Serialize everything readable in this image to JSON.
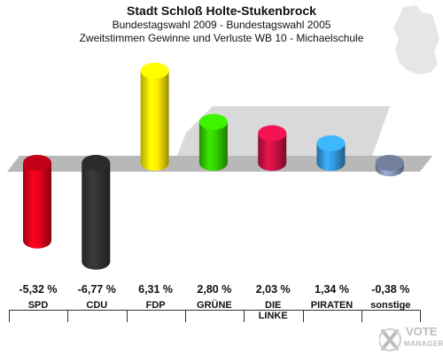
{
  "header": {
    "title": "Stadt Schloß Holte-Stukenbrock",
    "subtitle": "Bundestagswahl 2009 - Bundestagswahl 2005",
    "subtitle2": "Zweitstimmen Gewinne und Verluste WB 10 - Michaelschule"
  },
  "logo": {
    "line1": "VOTE",
    "line2": "MANAGER"
  },
  "chart_data": {
    "type": "bar",
    "title": "Stadt Schloß Holte-Stukenbrock",
    "subtitle": "Bundestagswahl 2009 - Bundestagswahl 2005 / Zweitstimmen Gewinne und Verluste WB 10 - Michaelschule",
    "xlabel": "",
    "ylabel": "",
    "categories": [
      "SPD",
      "CDU",
      "FDP",
      "GRÜNE",
      "DIE LINKE",
      "PIRATEN",
      "sonstige"
    ],
    "values": [
      -5.32,
      -6.77,
      6.31,
      2.8,
      2.03,
      1.34,
      -0.38
    ],
    "value_labels": [
      "-5,32 %",
      "-6,77 %",
      "6,31 %",
      "2,80 %",
      "2,03 %",
      "1,34 %",
      "-0,38 %"
    ],
    "category_labels": [
      [
        "SPD"
      ],
      [
        "CDU"
      ],
      [
        "FDP"
      ],
      [
        "GRÜNE"
      ],
      [
        "DIE",
        "LINKE"
      ],
      [
        "PIRATEN"
      ],
      [
        "sonstige"
      ]
    ],
    "colors": [
      "#e2001a",
      "#333333",
      "#ffed00",
      "#33cc00",
      "#cc1144",
      "#3399dd",
      "#8899bb"
    ],
    "ylim": [
      -7,
      7
    ],
    "grid": false,
    "legend": "none"
  }
}
